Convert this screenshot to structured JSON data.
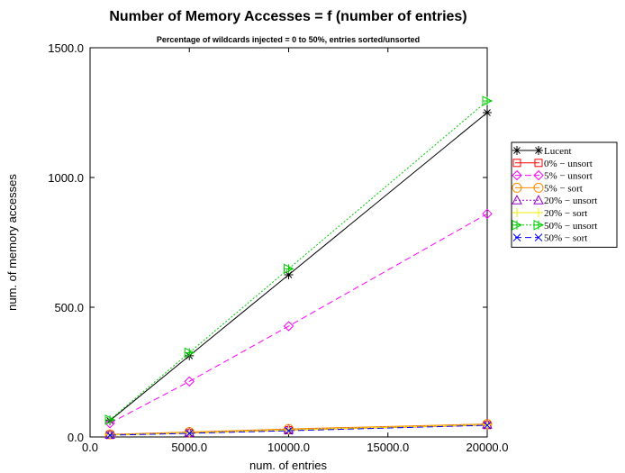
{
  "chart_data": {
    "type": "line",
    "title": "Number of Memory Accesses = f (number of entries)",
    "subtitle": "Percentage of wildcards injected = 0 to 50%, entries sorted/unsorted",
    "xlabel": "num. of entries",
    "ylabel": "num. of memory accesses",
    "xlim": [
      0,
      20000
    ],
    "ylim": [
      0,
      1500
    ],
    "xticks": [
      0,
      5000,
      10000,
      15000,
      20000
    ],
    "xtick_labels": [
      "0.0",
      "5000.0",
      "10000.0",
      "15000.0",
      "20000.0"
    ],
    "yticks": [
      0,
      500,
      1000,
      1500
    ],
    "ytick_labels": [
      "0.0",
      "500.0",
      "1000.0",
      "1500.0"
    ],
    "grid": false,
    "legend_position": "top-right",
    "x": [
      1000,
      5000,
      10000,
      20000
    ],
    "series": [
      {
        "name": "Lucent",
        "values": [
          63,
          313,
          625,
          1250
        ],
        "color": "#000000",
        "marker": "asterisk",
        "dash": "solid"
      },
      {
        "name": "0% − unsort",
        "values": [
          8,
          15,
          26,
          46
        ],
        "color": "#ff0000",
        "marker": "square",
        "dash": "solid"
      },
      {
        "name": "5% − unsort",
        "values": [
          53,
          214,
          427,
          860
        ],
        "color": "#ff00ff",
        "marker": "diamond",
        "dash": "dashed"
      },
      {
        "name": "5% − sort",
        "values": [
          10,
          19,
          31,
          50
        ],
        "color": "#ff8c00",
        "marker": "circle",
        "dash": "solid"
      },
      {
        "name": "20% − unsort",
        "values": [
          9,
          17,
          28,
          48
        ],
        "color": "#9900cc",
        "marker": "triangle",
        "dash": "dotted"
      },
      {
        "name": "20% − sort",
        "values": [
          8,
          16,
          27,
          47
        ],
        "color": "#eeee00",
        "marker": "plus",
        "dash": "solid"
      },
      {
        "name": "50% − unsort",
        "values": [
          66,
          325,
          648,
          1295
        ],
        "color": "#00cc00",
        "marker": "tri-plus",
        "dash": "dotted"
      },
      {
        "name": "50% − sort",
        "values": [
          7,
          14,
          24,
          45
        ],
        "color": "#0000ff",
        "marker": "x",
        "dash": "dashed"
      }
    ]
  }
}
